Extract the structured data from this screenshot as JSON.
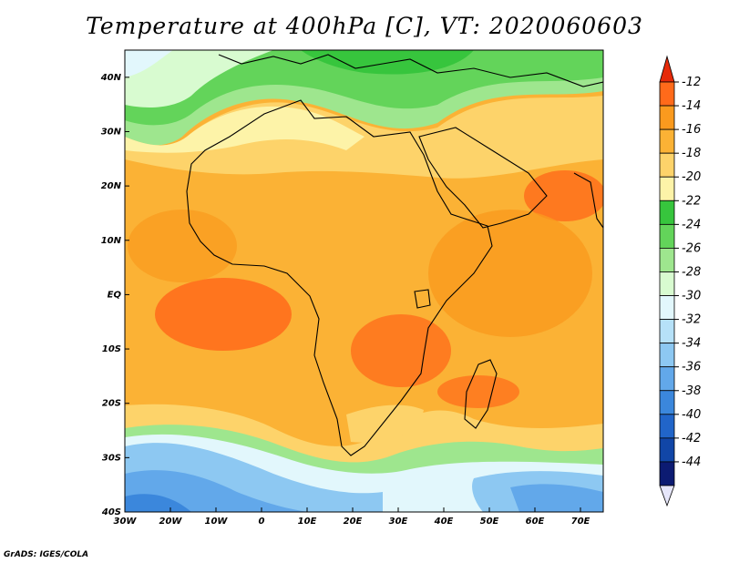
{
  "title": "Temperature at 400hPa [C], VT: 2020060603",
  "credit": "GrADS: IGES/COLA",
  "map": {
    "lon_range": [
      -30,
      75
    ],
    "lat_range": [
      -40,
      45
    ],
    "lon_ticks": [
      {
        "value": -30,
        "label": "30W"
      },
      {
        "value": -20,
        "label": "20W"
      },
      {
        "value": -10,
        "label": "10W"
      },
      {
        "value": 0,
        "label": "0"
      },
      {
        "value": 10,
        "label": "10E"
      },
      {
        "value": 20,
        "label": "20E"
      },
      {
        "value": 30,
        "label": "30E"
      },
      {
        "value": 40,
        "label": "40E"
      },
      {
        "value": 50,
        "label": "50E"
      },
      {
        "value": 60,
        "label": "60E"
      },
      {
        "value": 70,
        "label": "70E"
      }
    ],
    "lat_ticks": [
      {
        "value": 40,
        "label": "40N"
      },
      {
        "value": 30,
        "label": "30N"
      },
      {
        "value": 20,
        "label": "20N"
      },
      {
        "value": 10,
        "label": "10N"
      },
      {
        "value": 0,
        "label": "EQ"
      },
      {
        "value": -10,
        "label": "10S"
      },
      {
        "value": -20,
        "label": "20S"
      },
      {
        "value": -30,
        "label": "30S"
      },
      {
        "value": -40,
        "label": "40S"
      }
    ]
  },
  "colorbar": {
    "levels": [
      "-12",
      "-14",
      "-16",
      "-18",
      "-20",
      "-22",
      "-24",
      "-26",
      "-28",
      "-30",
      "-32",
      "-34",
      "-36",
      "-38",
      "-40",
      "-42",
      "-44"
    ],
    "colors": [
      "#ff6a1a",
      "#fa9a1e",
      "#fbb235",
      "#fdd36a",
      "#fdf3a8",
      "#37c53d",
      "#63d45a",
      "#9ee68e",
      "#d8fbd0",
      "#e2f7fc",
      "#b6e1f8",
      "#8dc8f2",
      "#62a8ea",
      "#3b87dc",
      "#2165c9",
      "#1146a7",
      "#0c1b72"
    ],
    "top_arrow_color": "#e62a0a",
    "bottom_arrow_color": "#e6e6fa"
  }
}
